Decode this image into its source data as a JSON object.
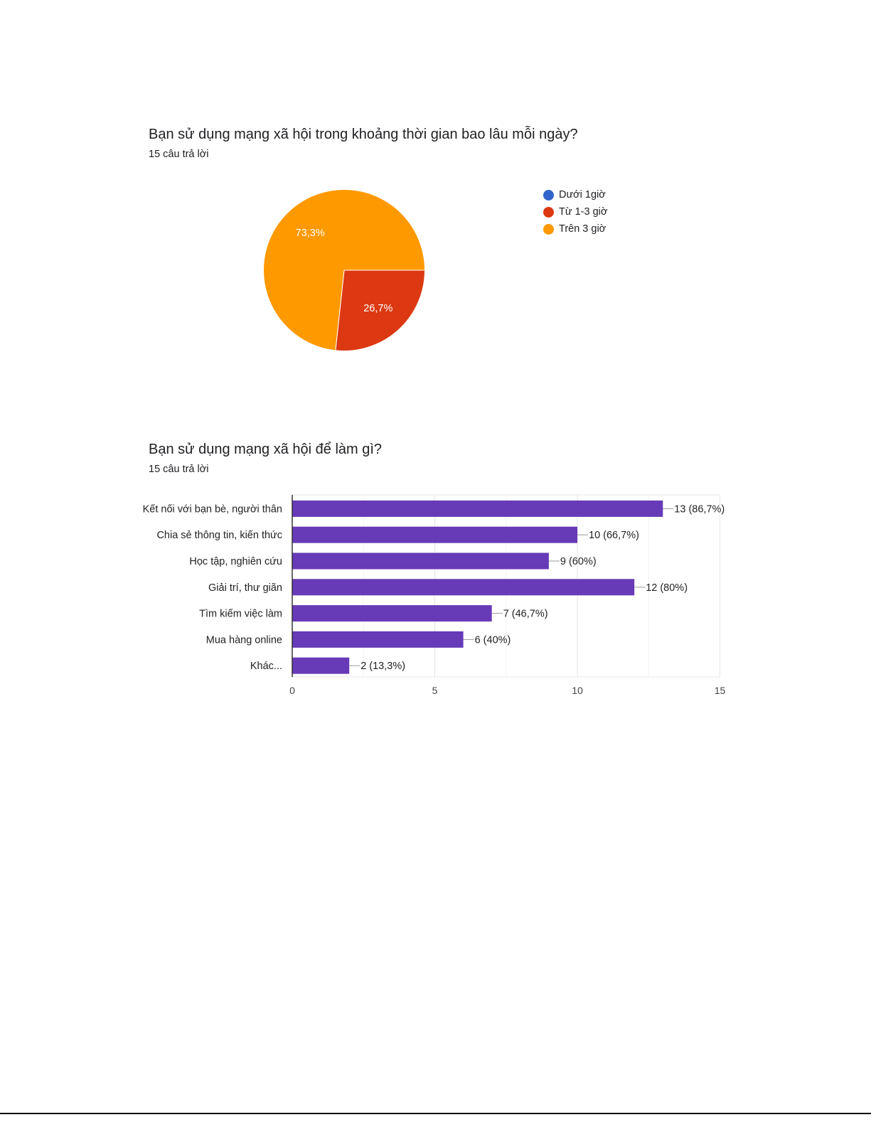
{
  "questions": [
    {
      "title": "Bạn sử dụng mạng xã hội trong khoảng thời gian bao lâu mỗi ngày?",
      "responses": "15 câu trả lời"
    },
    {
      "title": "Bạn sử dụng mạng xã hội để làm gì?",
      "responses": "15 câu trả lời"
    }
  ],
  "chart_data": [
    {
      "type": "pie",
      "slices": [
        {
          "label": "Dưới 1giờ",
          "percent": 0,
          "color": "#3366cc",
          "data_label": ""
        },
        {
          "label": "Từ 1-3 giờ",
          "percent": 26.7,
          "color": "#dc3912",
          "data_label": "26,7%"
        },
        {
          "label": "Trên 3 giờ",
          "percent": 73.3,
          "color": "#ff9900",
          "data_label": "73,3%"
        }
      ],
      "legend_position": "right"
    },
    {
      "type": "bar",
      "orientation": "horizontal",
      "categories": [
        "Kết nối với bạn bè, người thân",
        "Chia sẻ thông tin, kiến thức",
        "Học tập, nghiên cứu",
        "Giải trí, thư giãn",
        "Tìm kiếm việc làm",
        "Mua hàng online",
        "Khác..."
      ],
      "values": [
        13,
        10,
        9,
        12,
        7,
        6,
        2
      ],
      "data_labels": [
        "13 (86,7%)",
        "10 (66,7%)",
        "9 (60%)",
        "12 (80%)",
        "7 (46,7%)",
        "6 (40%)",
        "2 (13,3%)"
      ],
      "xlim": [
        0,
        15
      ],
      "xticks": [
        "0",
        "5",
        "10",
        "15"
      ],
      "grid": true,
      "color": "#673ab7"
    }
  ]
}
